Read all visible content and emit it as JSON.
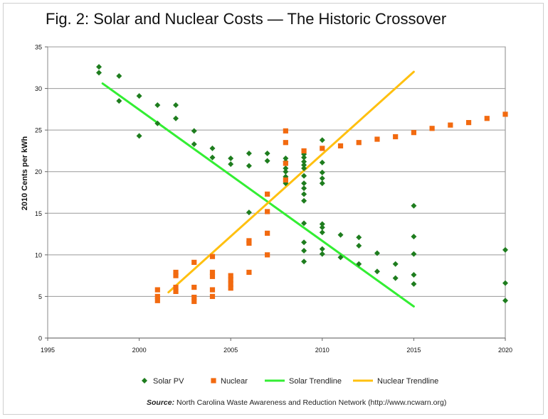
{
  "title": "Fig. 2: Solar and Nuclear Costs — The Historic Crossover",
  "source_label": "Source:",
  "source_text": "North Carolina Waste Awareness and Reduction Network (http://www.ncwarn.org)",
  "colors": {
    "solar": "#1e7d1e",
    "nuclear": "#f26a10",
    "solar_trend": "#33ee33",
    "nuclear_trend": "#ffc010"
  },
  "chart_data": {
    "type": "scatter",
    "xlabel": "",
    "ylabel": "2010 Cents per kWh",
    "xlim": [
      1995,
      2020
    ],
    "ylim": [
      0,
      35
    ],
    "xticks": [
      1995,
      2000,
      2005,
      2010,
      2015,
      2020
    ],
    "yticks": [
      0,
      5,
      10,
      15,
      20,
      25,
      30,
      35
    ],
    "grid": "horizontal",
    "legend_position": "bottom",
    "series": [
      {
        "name": "Solar PV",
        "marker": "diamond",
        "points": [
          [
            1997.8,
            32.6
          ],
          [
            1997.8,
            31.9
          ],
          [
            1998.9,
            31.5
          ],
          [
            1998.9,
            28.5
          ],
          [
            2000,
            29.1
          ],
          [
            2000,
            24.3
          ],
          [
            2001,
            28
          ],
          [
            2001,
            25.8
          ],
          [
            2002,
            28
          ],
          [
            2002,
            26.4
          ],
          [
            2003,
            24.9
          ],
          [
            2003,
            23.3
          ],
          [
            2004,
            22.8
          ],
          [
            2004,
            21.7
          ],
          [
            2005,
            21.6
          ],
          [
            2005,
            20.9
          ],
          [
            2006,
            22.2
          ],
          [
            2006,
            20.7
          ],
          [
            2006,
            15.1
          ],
          [
            2007,
            22.2
          ],
          [
            2007,
            21.3
          ],
          [
            2008,
            21.6
          ],
          [
            2008,
            21.2
          ],
          [
            2008,
            20.4
          ],
          [
            2008,
            20
          ],
          [
            2008,
            19.4
          ],
          [
            2008,
            18.6
          ],
          [
            2009,
            22.1
          ],
          [
            2009,
            21.7
          ],
          [
            2009,
            21.2
          ],
          [
            2009,
            20.8
          ],
          [
            2009,
            20.4
          ],
          [
            2009,
            19.5
          ],
          [
            2009,
            18.6
          ],
          [
            2009,
            18
          ],
          [
            2009,
            17.3
          ],
          [
            2009,
            16.5
          ],
          [
            2009,
            13.8
          ],
          [
            2009,
            11.5
          ],
          [
            2009,
            10.5
          ],
          [
            2009,
            9.2
          ],
          [
            2010,
            23.8
          ],
          [
            2010,
            21.1
          ],
          [
            2010,
            19.9
          ],
          [
            2010,
            19.2
          ],
          [
            2010,
            18.6
          ],
          [
            2010,
            13.7
          ],
          [
            2010,
            13.3
          ],
          [
            2010,
            12.7
          ],
          [
            2010,
            10.7
          ],
          [
            2010,
            10.1
          ],
          [
            2011,
            12.4
          ],
          [
            2011,
            9.7
          ],
          [
            2012,
            12.1
          ],
          [
            2012,
            11.1
          ],
          [
            2012,
            8.9
          ],
          [
            2013,
            10.2
          ],
          [
            2013,
            8
          ],
          [
            2014,
            8.9
          ],
          [
            2014,
            7.2
          ],
          [
            2015,
            15.9
          ],
          [
            2015,
            12.2
          ],
          [
            2015,
            10.1
          ],
          [
            2015,
            7.6
          ],
          [
            2015,
            6.5
          ],
          [
            2020,
            10.6
          ],
          [
            2020,
            6.6
          ],
          [
            2020,
            4.5
          ]
        ]
      },
      {
        "name": "Nuclear",
        "marker": "square",
        "points": [
          [
            2001,
            5.8
          ],
          [
            2001,
            5
          ],
          [
            2001,
            4.5
          ],
          [
            2002,
            7.9
          ],
          [
            2002,
            7.5
          ],
          [
            2002,
            6.1
          ],
          [
            2002,
            5.6
          ],
          [
            2003,
            9.1
          ],
          [
            2003,
            6.1
          ],
          [
            2003,
            4.9
          ],
          [
            2003,
            4.4
          ],
          [
            2004,
            9.8
          ],
          [
            2004,
            7.9
          ],
          [
            2004,
            7.4
          ],
          [
            2004,
            5.8
          ],
          [
            2004,
            5
          ],
          [
            2005,
            7.5
          ],
          [
            2005,
            7
          ],
          [
            2005,
            6.5
          ],
          [
            2005,
            6
          ],
          [
            2006,
            11.7
          ],
          [
            2006,
            11.4
          ],
          [
            2006,
            7.9
          ],
          [
            2007,
            17.3
          ],
          [
            2007,
            15.2
          ],
          [
            2007,
            12.6
          ],
          [
            2007,
            10
          ],
          [
            2008,
            24.9
          ],
          [
            2008,
            23.5
          ],
          [
            2008,
            21
          ],
          [
            2008,
            19
          ],
          [
            2009,
            22.5
          ],
          [
            2010,
            22.8
          ],
          [
            2011,
            23.1
          ],
          [
            2012,
            23.5
          ],
          [
            2013,
            23.9
          ],
          [
            2014,
            24.2
          ],
          [
            2015,
            24.7
          ],
          [
            2016,
            25.2
          ],
          [
            2017,
            25.6
          ],
          [
            2018,
            25.9
          ],
          [
            2019,
            26.4
          ],
          [
            2020,
            26.9
          ]
        ]
      },
      {
        "name": "Solar Trendline",
        "type": "line",
        "points": [
          [
            1998,
            30.6
          ],
          [
            2015,
            3.8
          ]
        ]
      },
      {
        "name": "Nuclear Trendline",
        "type": "line",
        "points": [
          [
            2001.6,
            5.5
          ],
          [
            2015,
            32
          ]
        ]
      }
    ]
  }
}
